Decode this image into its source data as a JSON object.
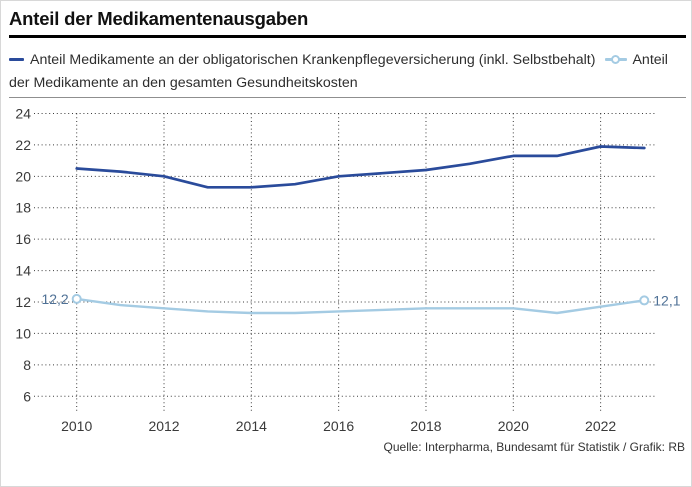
{
  "header": {
    "title": "Anteil der Medikamentenausgaben"
  },
  "legend": {
    "series1_label": "Anteil Medikamente an der obligatorischen Krankenpflegeversicherung (inkl. Selbstbehalt)",
    "series2_label": "Anteil der Medikamente an den gesamten Gesundheitskosten"
  },
  "footer": {
    "source": "Quelle: Interpharma, Bundesamt für Statistik / Grafik: RB"
  },
  "colors": {
    "series1": "#2a4b9b",
    "series2": "#a4cbe3",
    "value_label": "#4f7196",
    "axis_label": "#3a3a3a",
    "grid": "#1a1a1a",
    "title_rule": "#000000"
  },
  "chart_data": {
    "type": "line",
    "title": "Anteil der Medikamentenausgaben",
    "x": [
      2010,
      2011,
      2012,
      2013,
      2014,
      2015,
      2016,
      2017,
      2018,
      2019,
      2020,
      2021,
      2022,
      2023
    ],
    "series": [
      {
        "name": "Anteil Medikamente an der obligatorischen Krankenpflegeversicherung (inkl. Selbstbehalt)",
        "values": [
          20.5,
          20.3,
          20.0,
          19.3,
          19.3,
          19.5,
          20.0,
          20.2,
          20.4,
          20.8,
          21.3,
          21.3,
          21.9,
          21.8
        ],
        "color_key": "series1",
        "marker": "none"
      },
      {
        "name": "Anteil der Medikamente an den gesamten Gesundheitskosten",
        "values": [
          12.2,
          11.8,
          11.6,
          11.4,
          11.3,
          11.3,
          11.4,
          11.5,
          11.6,
          11.6,
          11.6,
          11.3,
          11.7,
          12.1
        ],
        "color_key": "series2",
        "marker": "circle-endpoints",
        "endpoint_labels": {
          "first": "12,2",
          "last": "12,1"
        }
      }
    ],
    "yticks": [
      6,
      8,
      10,
      12,
      14,
      16,
      18,
      20,
      22,
      24
    ],
    "xticks": [
      2010,
      2012,
      2014,
      2016,
      2018,
      2020,
      2022
    ],
    "ylim": [
      5,
      24.5
    ],
    "grid": "dotted",
    "legend_position": "top",
    "xlabel": "",
    "ylabel": ""
  }
}
